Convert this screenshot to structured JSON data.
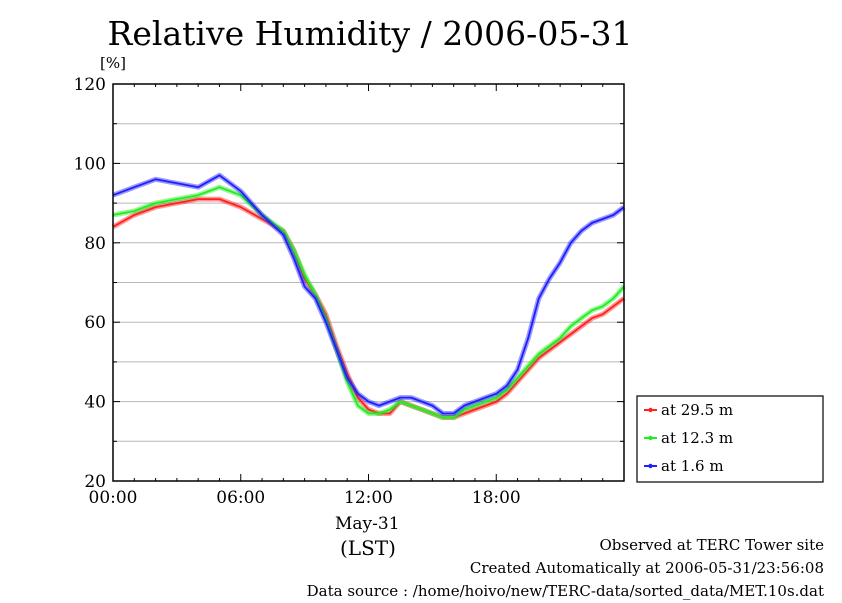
{
  "title": "Relative Humidity / 2006-05-31",
  "y_unit": "[%]",
  "x_date": "May-31",
  "x_timezone": "(LST)",
  "footer": {
    "line1": "Observed at TERC Tower site",
    "line2": "Created Automatically at 2006-05-31/23:56:08",
    "line3": "Data source : /home/hoivo/new/TERC-data/sorted_data/MET.10s.dat"
  },
  "chart_data": {
    "type": "line",
    "title": "Relative Humidity / 2006-05-31",
    "ylabel": "[%]",
    "xlabel": "May-31 (LST)",
    "xlim": [
      0,
      24
    ],
    "ylim": [
      20,
      120
    ],
    "x_ticks": [
      "00:00",
      "06:00",
      "12:00",
      "18:00"
    ],
    "y_ticks": [
      "20",
      "40",
      "60",
      "80",
      "100",
      "120"
    ],
    "grid": true,
    "legend_position": "right, outside, lower",
    "x": [
      0,
      1,
      2,
      3,
      4,
      5,
      6,
      7,
      8,
      8.5,
      9,
      9.5,
      10,
      10.5,
      11,
      11.5,
      12,
      12.5,
      13,
      13.5,
      14,
      14.5,
      15,
      15.5,
      16,
      16.5,
      17,
      17.5,
      18,
      18.5,
      19,
      19.5,
      20,
      20.5,
      21,
      21.5,
      22,
      22.5,
      23,
      23.5,
      24
    ],
    "series": [
      {
        "name": "at 29.5 m",
        "color": "#ff2020",
        "values": [
          84,
          87,
          89,
          90,
          91,
          91,
          89,
          86,
          83,
          78,
          71,
          67,
          62,
          54,
          47,
          41,
          38,
          37,
          37,
          40,
          39,
          38,
          37,
          36,
          36,
          37,
          38,
          39,
          40,
          42,
          45,
          48,
          51,
          53,
          55,
          57,
          59,
          61,
          62,
          64,
          66
        ]
      },
      {
        "name": "at 12.3 m",
        "color": "#20ee20",
        "values": [
          87,
          88,
          90,
          91,
          92,
          94,
          92,
          87,
          83,
          78,
          72,
          67,
          61,
          53,
          45,
          39,
          37,
          37,
          38,
          40,
          39,
          38,
          37,
          36,
          36,
          38,
          39,
          40,
          41,
          43,
          46,
          49,
          52,
          54,
          56,
          59,
          61,
          63,
          64,
          66,
          69
        ]
      },
      {
        "name": "at 1.6 m",
        "color": "#2020ff",
        "values": [
          92,
          94,
          96,
          95,
          94,
          97,
          93,
          87,
          82,
          76,
          69,
          66,
          60,
          53,
          46,
          42,
          40,
          39,
          40,
          41,
          41,
          40,
          39,
          37,
          37,
          39,
          40,
          41,
          42,
          44,
          48,
          56,
          66,
          71,
          75,
          80,
          83,
          85,
          86,
          87,
          89
        ]
      }
    ]
  }
}
